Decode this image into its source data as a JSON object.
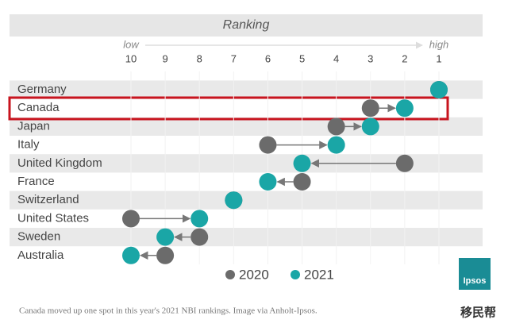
{
  "chart_data": {
    "type": "dumbbell",
    "title": "Ranking",
    "x_low_label": "low",
    "x_high_label": "high",
    "categories": [
      "Germany",
      "Canada",
      "Japan",
      "Italy",
      "United Kingdom",
      "France",
      "Switzerland",
      "United States",
      "Sweden",
      "Australia"
    ],
    "series": [
      {
        "name": "2020",
        "color": "#6b6b6b",
        "values": [
          1,
          3,
          4,
          6,
          2,
          5,
          7,
          10,
          8,
          9
        ]
      },
      {
        "name": "2021",
        "color": "#1aa6a6",
        "values": [
          1,
          2,
          3,
          4,
          5,
          6,
          7,
          8,
          9,
          10
        ]
      }
    ],
    "xlim": [
      10,
      1
    ],
    "xticks": [
      10,
      9,
      8,
      7,
      6,
      5,
      4,
      3,
      2,
      1
    ],
    "highlight_category": "Canada",
    "caption": "Canada moved up one spot in this year's 2021 NBI rankings. Image via Anholt-Ipsos.",
    "logo": "Ipsos",
    "watermark": "移民帮"
  }
}
